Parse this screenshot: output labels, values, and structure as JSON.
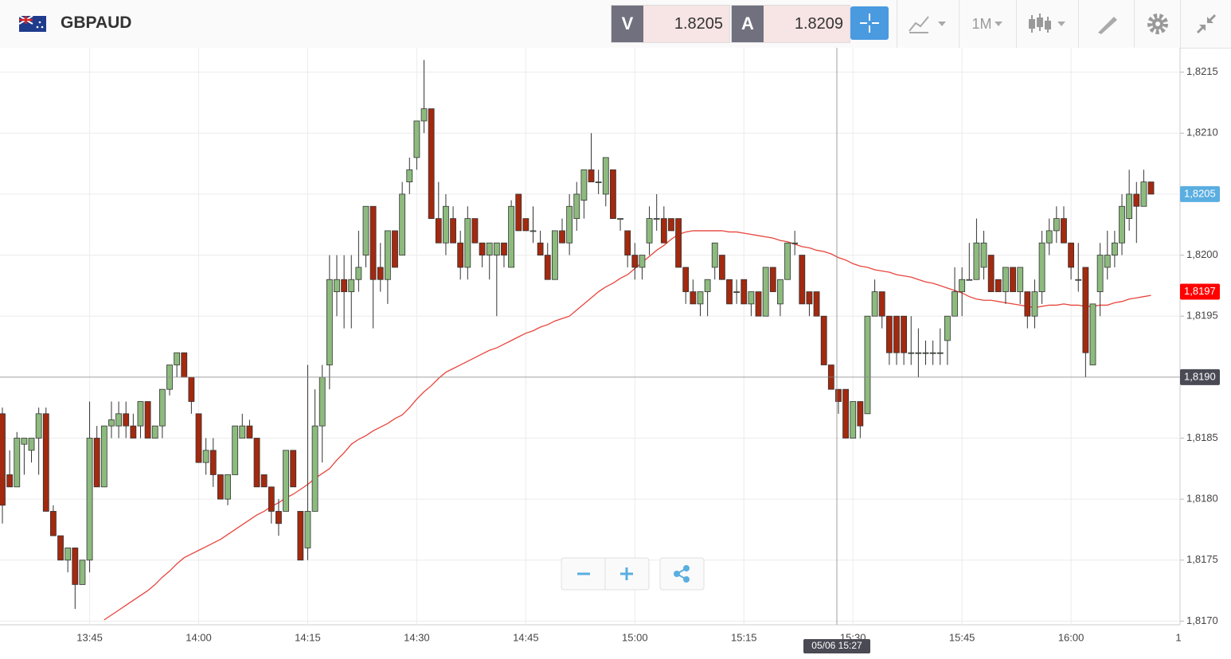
{
  "header": {
    "symbol": "GBPAUD",
    "bid": {
      "letter": "V",
      "price": "1.8205"
    },
    "ask": {
      "letter": "A",
      "price": "1.8209"
    },
    "timeframe": "1M"
  },
  "chart_data": {
    "type": "candlestick",
    "categories": [
      null,
      null,
      null,
      null,
      null,
      null,
      null,
      null,
      null,
      null,
      null,
      null,
      "13:45",
      null,
      null,
      null,
      null,
      null,
      null,
      null,
      null,
      null,
      null,
      null,
      null,
      null,
      null,
      "14:00",
      null,
      null,
      null,
      null,
      null,
      null,
      null,
      null,
      null,
      null,
      null,
      null,
      null,
      null,
      "14:15",
      null,
      null,
      null,
      null,
      null,
      null,
      null,
      null,
      null,
      null,
      null,
      null,
      null,
      null,
      "14:30",
      null,
      null,
      null,
      null,
      null,
      null,
      null,
      null,
      null,
      null,
      null,
      null,
      null,
      null,
      "14:45",
      null,
      null,
      null,
      null,
      null,
      null,
      null,
      null,
      null,
      null,
      null,
      null,
      null,
      null,
      "15:00",
      null,
      null,
      null,
      null,
      null,
      null,
      null,
      null,
      null,
      null,
      null,
      null,
      null,
      null,
      "15:15",
      null,
      null,
      null,
      null,
      null,
      null,
      null,
      null,
      null,
      null,
      null,
      null,
      null,
      null,
      "15:30",
      null,
      null,
      null,
      null,
      null,
      null,
      null,
      null,
      null,
      null,
      null,
      null,
      null,
      null,
      "15:45",
      null,
      null,
      null,
      null,
      null,
      null,
      null,
      null,
      null,
      null,
      null,
      null,
      null,
      null,
      "16:00",
      null,
      null,
      null,
      null,
      null,
      null,
      null,
      null,
      null,
      null,
      null
    ],
    "open": [
      1.8187,
      1.8182,
      1.8181,
      1.81845,
      1.8184,
      1.8185,
      1.8187,
      1.8179,
      1.8177,
      1.8175,
      1.8176,
      1.8173,
      1.8175,
      1.8185,
      1.8181,
      1.8186,
      1.8186,
      1.8187,
      1.8186,
      1.8186,
      1.8188,
      1.8185,
      1.8186,
      1.8189,
      1.8191,
      1.8192,
      1.819,
      1.8187,
      1.8183,
      1.8184,
      1.8182,
      1.818,
      1.8182,
      1.8185,
      1.8186,
      1.8185,
      1.8182,
      1.8181,
      1.8179,
      1.8179,
      1.8184,
      1.8179,
      1.8176,
      1.8179,
      1.8186,
      1.8191,
      1.8197,
      1.8198,
      1.8197,
      1.8198,
      1.82,
      1.8204,
      1.8199,
      1.8198,
      1.8202,
      1.82,
      1.8206,
      1.8208,
      1.8211,
      1.8212,
      1.8203,
      1.8201,
      1.8203,
      1.8201,
      1.8199,
      1.8203,
      1.8201,
      1.82,
      1.82,
      1.8201,
      1.8199,
      1.8205,
      1.8203,
      1.8202,
      1.8201,
      1.82,
      1.8198,
      1.8202,
      1.8201,
      1.8203,
      1.82045,
      1.8207,
      1.8206,
      1.8205,
      1.8207,
      1.8203,
      1.8202,
      1.82,
      1.8199,
      1.8201,
      1.8203,
      1.8203,
      1.8203,
      1.8203,
      1.8199,
      1.8197,
      1.8196,
      1.8197,
      1.8199,
      1.82,
      1.8198,
      1.8197,
      1.8198,
      1.8196,
      1.8197,
      1.8195,
      1.8199,
      1.8196,
      1.8198,
      1.8201,
      1.82,
      1.8197,
      1.8197,
      1.8195,
      1.8191,
      1.8189,
      1.8189,
      1.8185,
      1.8188,
      1.8187,
      1.8195,
      1.8197,
      1.8195,
      1.8195,
      1.8195,
      1.8192,
      1.8192,
      1.8192,
      1.8192,
      1.8192,
      1.8193,
      1.8195,
      1.8197,
      1.8198,
      1.8198,
      1.8199,
      1.82,
      1.8198,
      1.8197,
      1.8199,
      1.8197,
      1.8197,
      1.8195,
      1.8197,
      1.8201,
      1.8202,
      1.8203,
      1.8201,
      1.8198,
      1.8199,
      1.8191,
      1.8197,
      1.8199,
      1.82,
      1.8201,
      1.8203,
      1.8205,
      1.8204,
      1.8206
    ],
    "high": [
      1.81875,
      1.8184,
      1.81855,
      1.8185,
      1.8185,
      1.81875,
      1.81875,
      1.81795,
      1.8177,
      1.8176,
      1.8176,
      1.8175,
      1.8188,
      1.8186,
      1.8186,
      1.8188,
      1.8188,
      1.8188,
      1.8187,
      1.8188,
      1.8188,
      1.8186,
      1.8189,
      1.8191,
      1.8192,
      1.8192,
      1.819,
      1.8187,
      1.8185,
      1.8185,
      1.8182,
      1.8182,
      1.8186,
      1.8187,
      1.81865,
      1.8185,
      1.8182,
      1.8181,
      1.818,
      1.8184,
      1.8184,
      1.8179,
      1.8191,
      1.8189,
      1.8191,
      1.82,
      1.82,
      1.82,
      1.82,
      1.8202,
      1.8204,
      1.8204,
      1.8201,
      1.8202,
      1.8202,
      1.8206,
      1.8208,
      1.8211,
      1.8216,
      1.8212,
      1.8206,
      1.8205,
      1.8204,
      1.8202,
      1.8204,
      1.8203,
      1.8201,
      1.8201,
      1.8201,
      1.8201,
      1.82045,
      1.8205,
      1.8203,
      1.8204,
      1.8202,
      1.8201,
      1.8202,
      1.8203,
      1.8205,
      1.8206,
      1.8207,
      1.821,
      1.8207,
      1.8208,
      1.8207,
      1.8203,
      1.8202,
      1.8201,
      1.82,
      1.8204,
      1.8205,
      1.8204,
      1.8203,
      1.8203,
      1.8199,
      1.8198,
      1.8197,
      1.8198,
      1.8201,
      1.82,
      1.8198,
      1.8198,
      1.8198,
      1.8197,
      1.8197,
      1.8199,
      1.8199,
      1.8198,
      1.8201,
      1.8202,
      1.82,
      1.8197,
      1.8197,
      1.8195,
      1.8191,
      1.8189,
      1.8189,
      1.8188,
      1.8188,
      1.8195,
      1.8198,
      1.8197,
      1.8195,
      1.8195,
      1.8195,
      1.8195,
      1.8194,
      1.8193,
      1.8193,
      1.8194,
      1.8195,
      1.8199,
      1.8199,
      1.8201,
      1.8203,
      1.8202,
      1.82,
      1.8198,
      1.8199,
      1.8199,
      1.8199,
      1.8197,
      1.8198,
      1.8202,
      1.8203,
      1.8204,
      1.8204,
      1.8201,
      1.8201,
      1.8199,
      1.8196,
      1.8201,
      1.8202,
      1.8202,
      1.8205,
      1.8207,
      1.8206,
      1.8207,
      1.8206
    ],
    "low": [
      1.8178,
      1.8181,
      1.8181,
      1.8182,
      1.8183,
      1.8182,
      1.8179,
      1.8177,
      1.8175,
      1.8174,
      1.8171,
      1.8173,
      1.8174,
      1.8181,
      1.8181,
      1.8185,
      1.8185,
      1.8185,
      1.8185,
      1.8185,
      1.8185,
      1.8185,
      1.8185,
      1.81885,
      1.819,
      1.819,
      1.8187,
      1.8183,
      1.8182,
      1.8181,
      1.818,
      1.81795,
      1.8182,
      1.8185,
      1.8185,
      1.8181,
      1.8181,
      1.8178,
      1.8177,
      1.8179,
      1.8181,
      1.8175,
      1.8175,
      1.8179,
      1.8183,
      1.8189,
      1.8195,
      1.8194,
      1.8194,
      1.8197,
      1.8199,
      1.8194,
      1.8197,
      1.8196,
      1.8199,
      1.82,
      1.8205,
      1.8207,
      1.821,
      1.8203,
      1.8201,
      1.82,
      1.8201,
      1.8198,
      1.8198,
      1.8201,
      1.8199,
      1.8198,
      1.8195,
      1.8199,
      1.8199,
      1.8202,
      1.8202,
      1.8201,
      1.82,
      1.8198,
      1.8198,
      1.8201,
      1.82,
      1.8202,
      1.8203,
      1.8206,
      1.8205,
      1.8204,
      1.8203,
      1.8202,
      1.8199,
      1.8198,
      1.8198,
      1.82,
      1.8202,
      1.8201,
      1.8202,
      1.8199,
      1.8196,
      1.8196,
      1.8195,
      1.8195,
      1.8198,
      1.8198,
      1.8196,
      1.8196,
      1.8196,
      1.8195,
      1.8195,
      1.8195,
      1.8197,
      1.8195,
      1.8198,
      1.82,
      1.8196,
      1.8195,
      1.8195,
      1.8191,
      1.8189,
      1.8187,
      1.8185,
      1.8185,
      1.8185,
      1.8187,
      1.8195,
      1.8194,
      1.8191,
      1.8191,
      1.8191,
      1.8191,
      1.819,
      1.8191,
      1.8191,
      1.8191,
      1.8191,
      1.8195,
      1.8195,
      1.8198,
      1.8198,
      1.8198,
      1.8197,
      1.8197,
      1.8196,
      1.8197,
      1.8196,
      1.8194,
      1.8194,
      1.8196,
      1.82,
      1.8201,
      1.8201,
      1.8198,
      1.8197,
      1.819,
      1.8191,
      1.8195,
      1.8198,
      1.8199,
      1.82,
      1.8202,
      1.8201,
      1.8204,
      1.8205
    ],
    "close": [
      1.81795,
      1.8181,
      1.8185,
      1.8185,
      1.8185,
      1.8187,
      1.8179,
      1.8177,
      1.8175,
      1.8176,
      1.8173,
      1.8175,
      1.8185,
      1.8181,
      1.8186,
      1.81865,
      1.8187,
      1.8186,
      1.8185,
      1.8188,
      1.8185,
      1.8186,
      1.8189,
      1.8191,
      1.8192,
      1.819,
      1.8188,
      1.8183,
      1.8184,
      1.8182,
      1.818,
      1.8182,
      1.8186,
      1.8186,
      1.8185,
      1.8181,
      1.8181,
      1.8179,
      1.8178,
      1.8184,
      1.8181,
      1.8175,
      1.8179,
      1.8186,
      1.819,
      1.8198,
      1.8198,
      1.8197,
      1.8198,
      1.8199,
      1.8204,
      1.8198,
      1.8198,
      1.8202,
      1.8199,
      1.8205,
      1.8207,
      1.8211,
      1.8212,
      1.8203,
      1.8201,
      1.8204,
      1.8201,
      1.8199,
      1.8203,
      1.8201,
      1.82,
      1.8201,
      1.8201,
      1.82,
      1.8204,
      1.8202,
      1.8202,
      1.8202,
      1.82,
      1.8198,
      1.8202,
      1.8201,
      1.8204,
      1.8205,
      1.8207,
      1.8206,
      1.8206,
      1.8208,
      1.8203,
      1.8203,
      1.82,
      1.8199,
      1.82,
      1.8203,
      1.8203,
      1.8201,
      1.8202,
      1.8199,
      1.8197,
      1.8196,
      1.8197,
      1.8198,
      1.8201,
      1.8198,
      1.8196,
      1.8197,
      1.8196,
      1.8197,
      1.8195,
      1.8199,
      1.8197,
      1.8198,
      1.8201,
      1.8201,
      1.8196,
      1.8196,
      1.8195,
      1.8191,
      1.8189,
      1.8188,
      1.8185,
      1.8188,
      1.8186,
      1.8195,
      1.8197,
      1.8195,
      1.8192,
      1.8192,
      1.8192,
      1.8192,
      1.8192,
      1.8192,
      1.8192,
      1.8192,
      1.8195,
      1.8197,
      1.8198,
      1.8198,
      1.8201,
      1.8201,
      1.8197,
      1.8197,
      1.8199,
      1.8197,
      1.8199,
      1.8195,
      1.8197,
      1.8201,
      1.8202,
      1.8203,
      1.8201,
      1.8199,
      1.8198,
      1.8192,
      1.8196,
      1.82,
      1.82,
      1.8201,
      1.8204,
      1.8205,
      1.8204,
      1.8206,
      1.8205
    ],
    "up_color": "#8dbb7e",
    "down_color": "#a3290f",
    "moving_average": {
      "color": "#e8453c",
      "values": [
        null,
        null,
        null,
        null,
        null,
        null,
        null,
        null,
        null,
        null,
        null,
        null,
        null,
        null,
        1.81701,
        1.81705,
        1.81709,
        1.81713,
        1.81717,
        1.81721,
        1.81725,
        1.8173,
        1.81736,
        1.81741,
        1.81747,
        1.81752,
        1.81755,
        1.81758,
        1.81761,
        1.81764,
        1.81767,
        1.81771,
        1.81775,
        1.81779,
        1.81783,
        1.81787,
        1.8179,
        1.81794,
        1.81797,
        1.81801,
        1.81804,
        1.81808,
        1.81812,
        1.81817,
        1.81821,
        1.81825,
        1.81832,
        1.81838,
        1.81845,
        1.81849,
        1.81852,
        1.81856,
        1.81859,
        1.81862,
        1.81866,
        1.81869,
        1.81875,
        1.81882,
        1.81888,
        1.81893,
        1.81899,
        1.81904,
        1.81907,
        1.8191,
        1.81913,
        1.81916,
        1.81919,
        1.81922,
        1.81924,
        1.81927,
        1.8193,
        1.81933,
        1.81936,
        1.81938,
        1.81941,
        1.81943,
        1.81946,
        1.81948,
        1.8195,
        1.81955,
        1.8196,
        1.81965,
        1.8197,
        1.81974,
        1.81977,
        1.81981,
        1.81984,
        1.81989,
        1.81994,
        1.81999,
        1.82004,
        1.82008,
        1.82013,
        1.82017,
        1.82019,
        1.8202,
        1.8202,
        1.8202,
        1.8202,
        1.8202,
        1.82019,
        1.82019,
        1.82018,
        1.82017,
        1.82016,
        1.82015,
        1.82014,
        1.82012,
        1.82011,
        1.82009,
        1.82007,
        1.82006,
        1.82004,
        1.82003,
        1.82001,
        1.81998,
        1.81996,
        1.81993,
        1.81991,
        1.8199,
        1.81988,
        1.81987,
        1.81986,
        1.81984,
        1.81983,
        1.81982,
        1.8198,
        1.81978,
        1.81977,
        1.81975,
        1.81973,
        1.81971,
        1.81969,
        1.81966,
        1.81964,
        1.81963,
        1.81963,
        1.81962,
        1.81961,
        1.8196,
        1.81959,
        1.81958,
        1.81957,
        1.81958,
        1.81959,
        1.81959,
        1.8196,
        1.81959,
        1.81959,
        1.81958,
        1.81958,
        1.81959,
        1.81959,
        1.81961,
        1.81962,
        1.81964,
        1.81965,
        1.81966,
        1.81967
      ]
    },
    "ylim": [
      1.81697,
      1.8217
    ],
    "yticks": [
      {
        "value": 1.817,
        "label": "1,8170"
      },
      {
        "value": 1.8175,
        "label": "1,8175"
      },
      {
        "value": 1.818,
        "label": "1,8180"
      },
      {
        "value": 1.8185,
        "label": "1,8185"
      },
      {
        "value": 1.819,
        "label": "1,8190"
      },
      {
        "value": 1.8195,
        "label": "1,8195"
      },
      {
        "value": 1.82,
        "label": "1,8200"
      },
      {
        "value": 1.8205,
        "label": "1,8205"
      },
      {
        "value": 1.821,
        "label": "1,8210"
      },
      {
        "value": 1.8215,
        "label": "1,8215"
      }
    ],
    "x_edge_label": "1",
    "grid": true,
    "last_price": {
      "value": 1.8205,
      "label": "1,8205",
      "color": "#5aaee0"
    },
    "ma_price": {
      "value": 1.8197,
      "label": "1,8197",
      "color": "#ff0000"
    },
    "crosshair": {
      "time_label": "05/06 15:27",
      "value": 1.819,
      "label": "1,8190"
    }
  }
}
